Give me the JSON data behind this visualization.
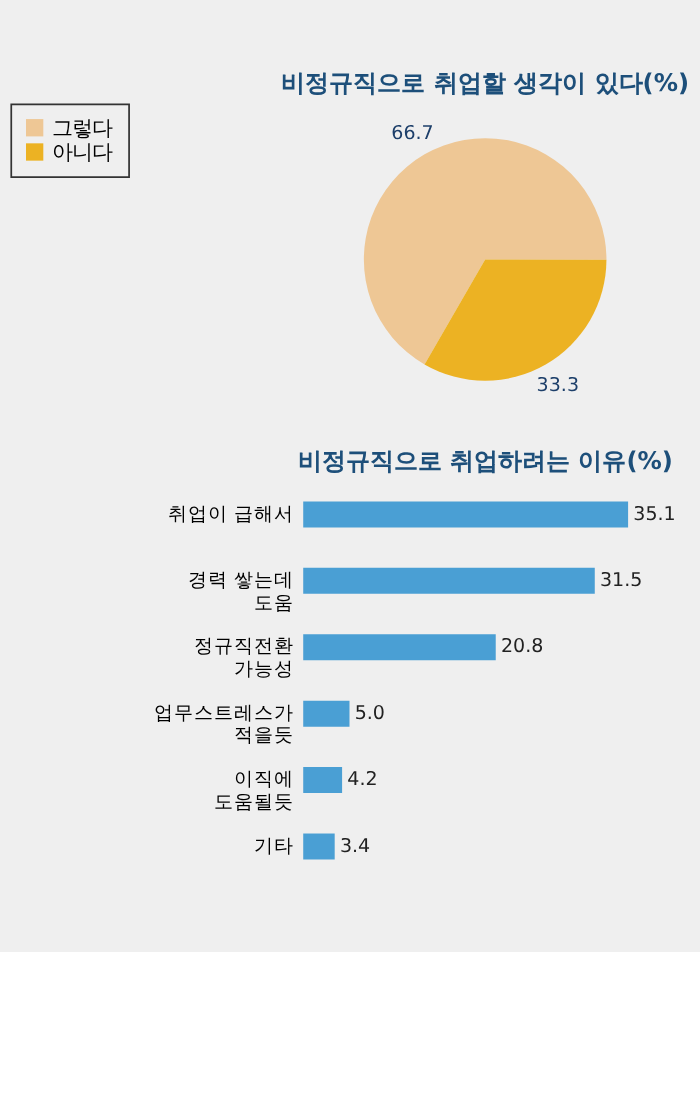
{
  "chart_data": [
    {
      "type": "pie",
      "title": "비정규직으로 취업할 생각이 있다(%)",
      "categories": [
        "그렇다",
        "아니다"
      ],
      "values": [
        66.7,
        33.3
      ],
      "colors": [
        "#eec795",
        "#ecb223"
      ],
      "data_labels": true,
      "legend": "left"
    },
    {
      "type": "bar",
      "title": "비정규직으로 취업하려는 이유(%)",
      "orientation": "horizontal",
      "categories": [
        "취업이 급해서",
        "경력 쌓는데 도움",
        "정규직전환 가능성",
        "업무스트레스가 적을듯",
        "이직에 도움될듯",
        "기타"
      ],
      "values": [
        35.1,
        31.5,
        20.8,
        5.0,
        4.2,
        3.4
      ],
      "value_labels": [
        "35.1",
        "31.5",
        "20.8",
        "5.0",
        "4.2",
        "3.4"
      ],
      "color": "#4a9fd4"
    }
  ]
}
